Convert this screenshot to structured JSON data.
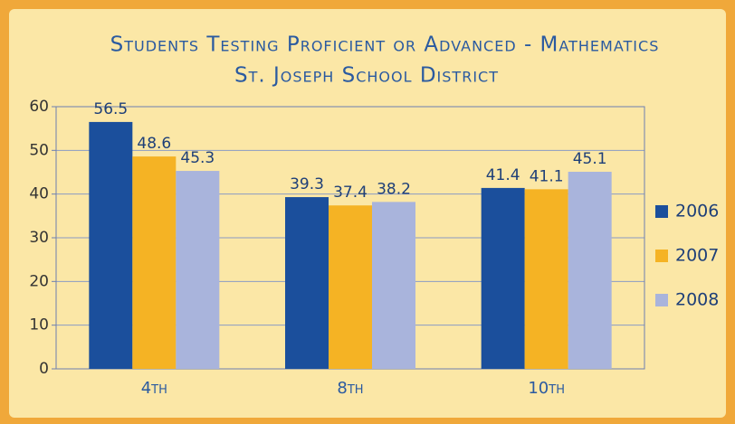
{
  "chart_data": {
    "type": "bar",
    "title": "Students Testing Proficient or Advanced - Mathematics",
    "subtitle": "St. Joseph School District",
    "categories": [
      "4th",
      "8th",
      "10th"
    ],
    "series": [
      {
        "name": "2006",
        "color": "#1b4f9c",
        "values": [
          56.5,
          39.3,
          41.4
        ]
      },
      {
        "name": "2007",
        "color": "#f5b324",
        "values": [
          48.6,
          37.4,
          41.1
        ]
      },
      {
        "name": "2008",
        "color": "#a9b4dc",
        "values": [
          45.3,
          38.2,
          45.1
        ]
      }
    ],
    "ylim": [
      0,
      60
    ],
    "yticks": [
      0,
      10,
      20,
      30,
      40,
      50,
      60
    ],
    "grid": true,
    "legend": "right"
  }
}
